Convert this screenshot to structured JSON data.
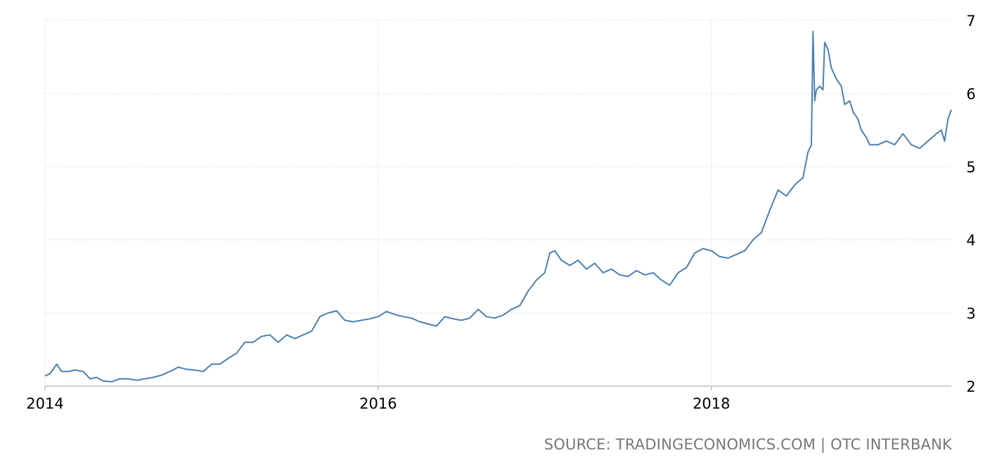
{
  "source_text": "SOURCE: TRADINGECONOMICS.COM | OTC INTERBANK",
  "colors": {
    "line": "#4a80b2",
    "grid": "#cccccc",
    "axis": "#bfbfbf",
    "source": "#777777"
  },
  "chart_data": {
    "type": "line",
    "title": "",
    "xlabel": "",
    "ylabel": "",
    "xlim": [
      2014.0,
      2019.44
    ],
    "ylim": [
      2,
      7
    ],
    "grid": true,
    "x_ticks": [
      {
        "value": 2014,
        "label": "2014"
      },
      {
        "value": 2016,
        "label": "2016"
      },
      {
        "value": 2018,
        "label": "2018"
      }
    ],
    "y_ticks": [
      {
        "value": 2,
        "label": "2"
      },
      {
        "value": 3,
        "label": "3"
      },
      {
        "value": 4,
        "label": "4"
      },
      {
        "value": 5,
        "label": "5"
      },
      {
        "value": 6,
        "label": "6"
      },
      {
        "value": 7,
        "label": "7"
      }
    ],
    "series": [
      {
        "x": [
          2014.0,
          2014.03,
          2014.07,
          2014.1,
          2014.14,
          2014.18,
          2014.23,
          2014.27,
          2014.31,
          2014.35,
          2014.4,
          2014.45,
          2014.5,
          2014.55,
          2014.6,
          2014.65,
          2014.7,
          2014.75,
          2014.8,
          2014.85,
          2014.9,
          2014.95,
          2015.0,
          2015.05,
          2015.1,
          2015.15,
          2015.2,
          2015.25,
          2015.3,
          2015.35,
          2015.4,
          2015.45,
          2015.5,
          2015.55,
          2015.6,
          2015.65,
          2015.7,
          2015.75,
          2015.8,
          2015.85,
          2015.9,
          2015.95,
          2016.0,
          2016.05,
          2016.1,
          2016.15,
          2016.2,
          2016.25,
          2016.3,
          2016.35,
          2016.4,
          2016.45,
          2016.5,
          2016.55,
          2016.6,
          2016.65,
          2016.7,
          2016.75,
          2016.8,
          2016.85,
          2016.9,
          2016.95,
          2017.0,
          2017.03,
          2017.06,
          2017.1,
          2017.15,
          2017.2,
          2017.25,
          2017.3,
          2017.35,
          2017.4,
          2017.45,
          2017.5,
          2017.55,
          2017.6,
          2017.65,
          2017.7,
          2017.75,
          2017.8,
          2017.85,
          2017.9,
          2017.95,
          2018.0,
          2018.05,
          2018.1,
          2018.15,
          2018.2,
          2018.25,
          2018.3,
          2018.35,
          2018.4,
          2018.45,
          2018.5,
          2018.55,
          2018.58,
          2018.6,
          2018.61,
          2018.62,
          2018.63,
          2018.65,
          2018.67,
          2018.68,
          2018.7,
          2018.72,
          2018.75,
          2018.78,
          2018.8,
          2018.83,
          2018.85,
          2018.88,
          2018.9,
          2018.93,
          2018.95,
          2019.0,
          2019.05,
          2019.1,
          2019.15,
          2019.2,
          2019.25,
          2019.3,
          2019.35,
          2019.38,
          2019.4,
          2019.42,
          2019.44
        ],
        "y": [
          2.14,
          2.17,
          2.3,
          2.2,
          2.2,
          2.22,
          2.2,
          2.1,
          2.12,
          2.07,
          2.06,
          2.1,
          2.1,
          2.08,
          2.1,
          2.12,
          2.15,
          2.2,
          2.26,
          2.23,
          2.22,
          2.2,
          2.3,
          2.3,
          2.38,
          2.45,
          2.6,
          2.6,
          2.68,
          2.7,
          2.6,
          2.7,
          2.65,
          2.7,
          2.75,
          2.95,
          3.0,
          3.03,
          2.9,
          2.88,
          2.9,
          2.92,
          2.95,
          3.02,
          2.98,
          2.95,
          2.93,
          2.88,
          2.85,
          2.82,
          2.95,
          2.92,
          2.9,
          2.93,
          3.05,
          2.95,
          2.93,
          2.97,
          3.05,
          3.1,
          3.3,
          3.45,
          3.55,
          3.82,
          3.85,
          3.72,
          3.65,
          3.72,
          3.6,
          3.68,
          3.55,
          3.6,
          3.52,
          3.5,
          3.58,
          3.52,
          3.55,
          3.45,
          3.38,
          3.55,
          3.62,
          3.82,
          3.88,
          3.85,
          3.77,
          3.75,
          3.8,
          3.85,
          4.0,
          4.1,
          4.4,
          4.68,
          4.6,
          4.75,
          4.85,
          5.2,
          5.3,
          6.85,
          5.9,
          6.05,
          6.1,
          6.05,
          6.7,
          6.6,
          6.35,
          6.2,
          6.1,
          5.85,
          5.9,
          5.75,
          5.65,
          5.5,
          5.4,
          5.3,
          5.3,
          5.35,
          5.3,
          5.45,
          5.3,
          5.25,
          5.35,
          5.45,
          5.5,
          5.35,
          5.65,
          5.78
        ]
      }
    ]
  }
}
